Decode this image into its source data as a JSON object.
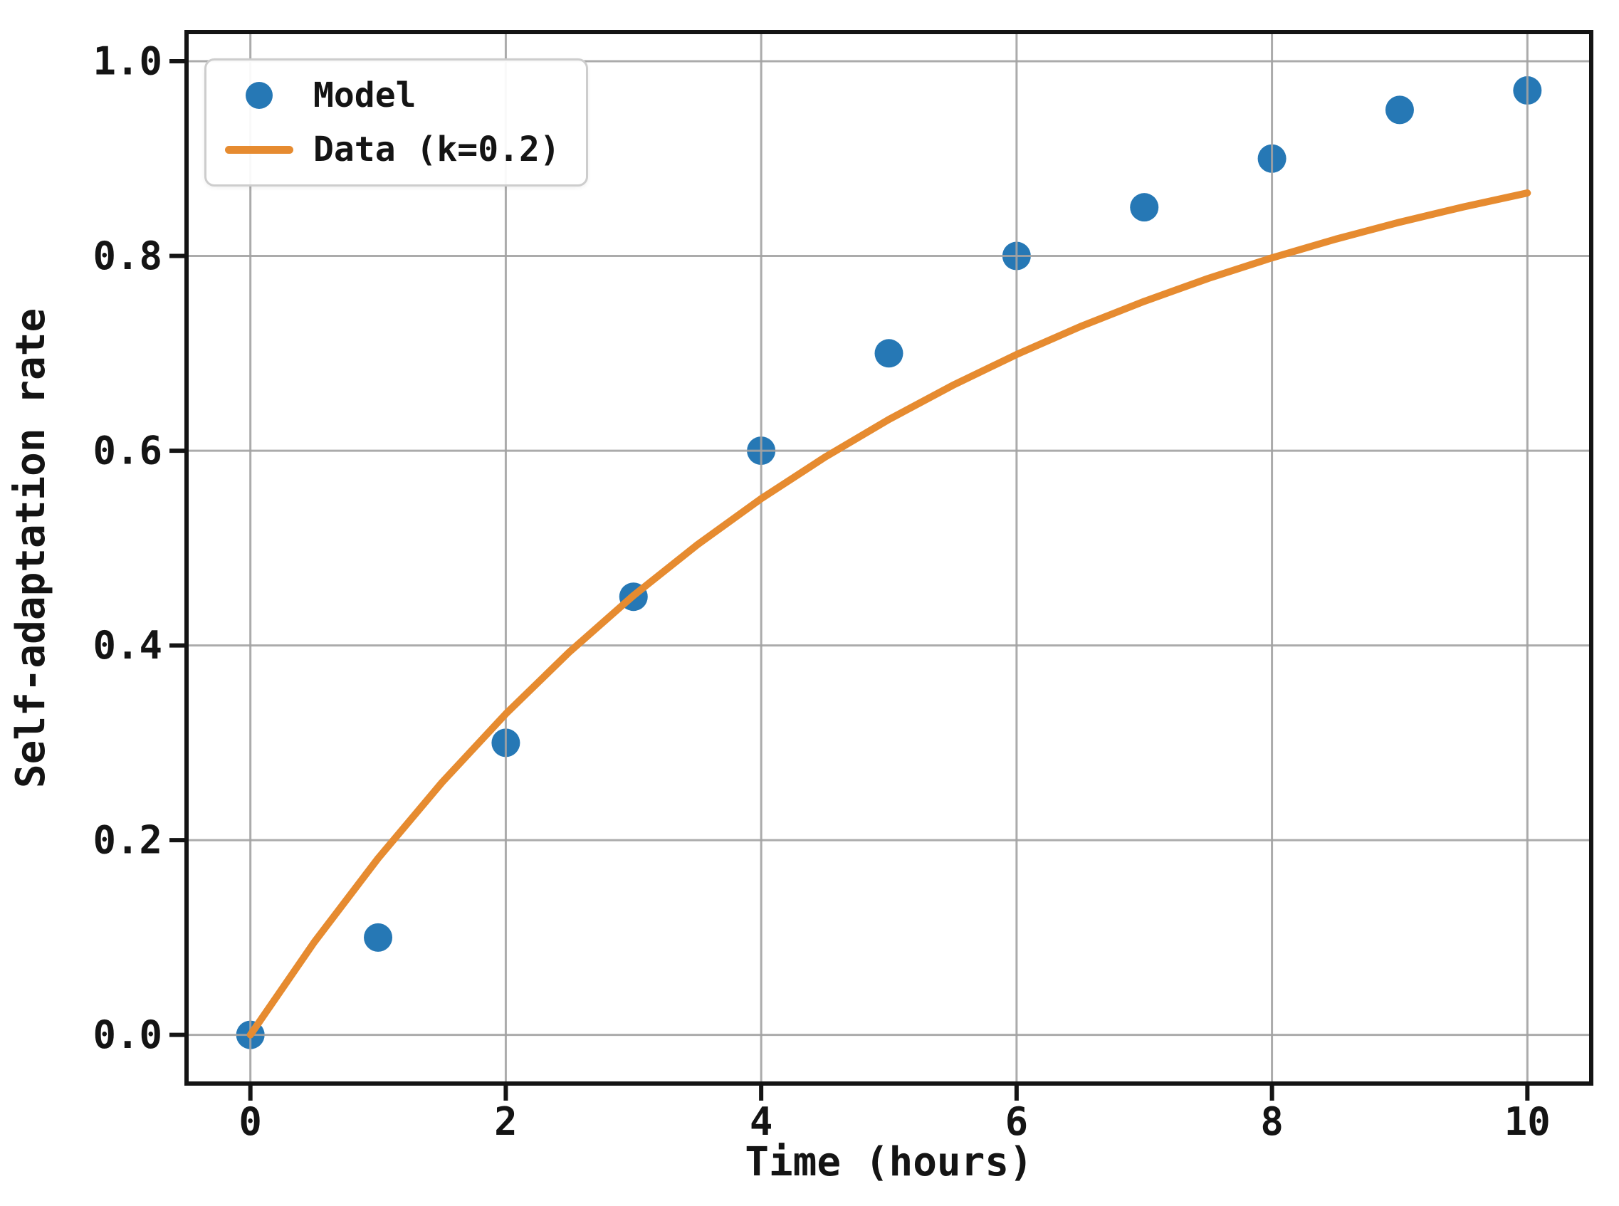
{
  "figure": {
    "background": "#ffffff"
  },
  "chart_data": {
    "type": "scatter",
    "xlabel": "Time (hours)",
    "ylabel": "Self-adaptation rate",
    "xlim": [
      -0.5,
      10.5
    ],
    "ylim": [
      -0.05,
      1.03
    ],
    "xticks": [
      0,
      2,
      4,
      6,
      8,
      10
    ],
    "xtick_labels": [
      "0",
      "2",
      "4",
      "6",
      "8",
      "10"
    ],
    "yticks": [
      0.0,
      0.2,
      0.4,
      0.6,
      0.8,
      1.0
    ],
    "ytick_labels": [
      "0.0",
      "0.2",
      "0.4",
      "0.6",
      "0.8",
      "1.0"
    ],
    "grid": true,
    "legend_position": "upper-left",
    "colors": {
      "grid": "#a3a3a3",
      "spine": "#141414",
      "text": "#141414"
    },
    "series": [
      {
        "name": "Model",
        "type": "scatter",
        "marker": "circle",
        "color": "#2678b5",
        "x": [
          0,
          1,
          2,
          3,
          4,
          5,
          6,
          7,
          8,
          9,
          10
        ],
        "y": [
          0.0,
          0.1,
          0.3,
          0.45,
          0.6,
          0.7,
          0.8,
          0.85,
          0.9,
          0.95,
          0.97
        ]
      },
      {
        "name": "Data (k=0.2)",
        "type": "line",
        "color": "#e68b30",
        "x": [
          0,
          0.5,
          1,
          1.5,
          2,
          2.5,
          3,
          3.5,
          4,
          4.5,
          5,
          5.5,
          6,
          6.5,
          7,
          7.5,
          8,
          8.5,
          9,
          9.5,
          10
        ],
        "y": [
          0.0,
          0.0952,
          0.1813,
          0.2592,
          0.3297,
          0.3935,
          0.4512,
          0.5034,
          0.5507,
          0.5934,
          0.6321,
          0.6671,
          0.6988,
          0.7275,
          0.7534,
          0.7769,
          0.7981,
          0.8173,
          0.8347,
          0.8504,
          0.8647
        ]
      }
    ]
  }
}
